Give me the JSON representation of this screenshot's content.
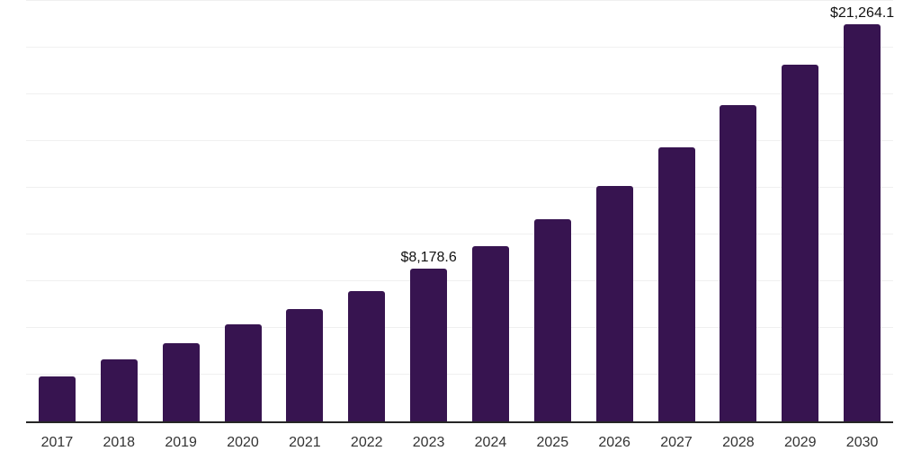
{
  "page": {
    "background": "#ffffff"
  },
  "chart_style": {
    "bar_color": "#371450",
    "axis_line_color": "#262626",
    "gridline_color": "#f0f0f0",
    "tick_label_color": "#333333",
    "data_label_color": "#111111"
  },
  "chart_data": {
    "type": "bar",
    "title": "",
    "xlabel": "",
    "ylabel": "",
    "categories": [
      "2017",
      "2018",
      "2019",
      "2020",
      "2021",
      "2022",
      "2023",
      "2024",
      "2025",
      "2026",
      "2027",
      "2028",
      "2029",
      "2030"
    ],
    "values": [
      2400,
      3320,
      4180,
      5190,
      6010,
      6970,
      8178.6,
      9380,
      10820,
      12600,
      14660,
      16920,
      19090,
      21264.1
    ],
    "data_labels": [
      {
        "category": "2023",
        "text": "$8,178.6"
      },
      {
        "category": "2030",
        "text": "$21,264.1"
      }
    ],
    "ylim": [
      0,
      22500
    ],
    "gridline_interval": 2500,
    "grid": "horizontal",
    "legend_position": "none"
  }
}
